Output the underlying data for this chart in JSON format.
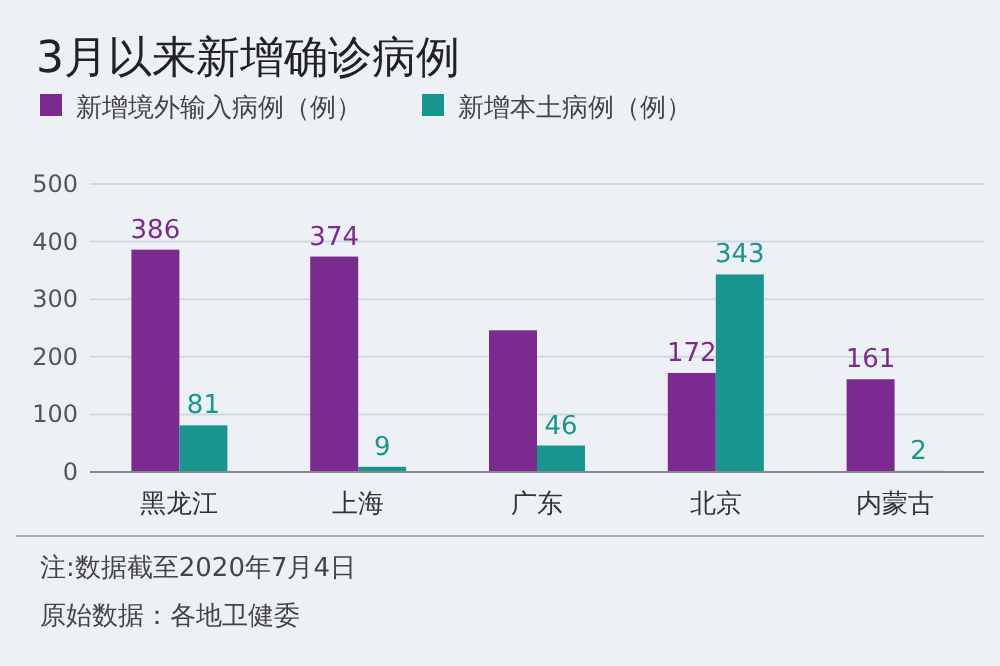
{
  "chart_data": {
    "type": "bar",
    "title": "3月以来新增确诊病例",
    "categories": [
      "黑龙江",
      "上海",
      "广东",
      "北京",
      "内蒙古"
    ],
    "series": [
      {
        "name": "新增境外输入病例（例）",
        "color": "#7b2b8f",
        "values": [
          386,
          374,
          246,
          172,
          161
        ],
        "value_labels": [
          "386",
          "374",
          null,
          "172",
          "161"
        ]
      },
      {
        "name": "新增本土病例（例）",
        "color": "#17958f",
        "values": [
          81,
          9,
          46,
          343,
          2
        ],
        "value_labels": [
          "81",
          "9",
          "46",
          "343",
          "2"
        ]
      }
    ],
    "ylim": [
      0,
      500
    ],
    "yticks": [
      0,
      100,
      200,
      300,
      400,
      500
    ],
    "grid": "y",
    "legend": "top left",
    "annotations": [
      "注:数据截至2020年7月4日",
      "原始数据：各地卫健委"
    ]
  }
}
